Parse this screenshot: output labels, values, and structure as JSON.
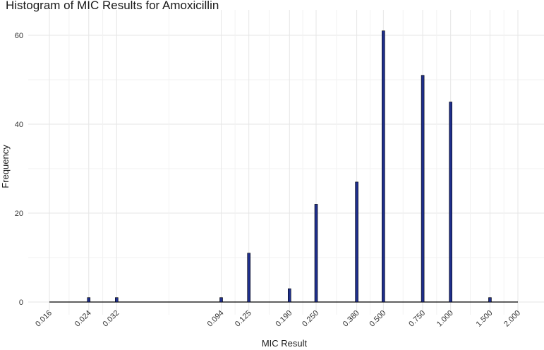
{
  "chart_data": {
    "type": "bar",
    "title": "Histogram of MIC Results for Amoxicillin",
    "xlabel": "MIC Result",
    "ylabel": "Frequency",
    "x_scale": "log",
    "x_ticks": [
      "0.016",
      "0.024",
      "0.032",
      "0.094",
      "0.125",
      "0.190",
      "0.250",
      "0.380",
      "0.500",
      "0.750",
      "1.000",
      "1.500",
      "2.000"
    ],
    "x_tick_values": [
      0.016,
      0.024,
      0.032,
      0.094,
      0.125,
      0.19,
      0.25,
      0.38,
      0.5,
      0.75,
      1.0,
      1.5,
      2.0
    ],
    "ylim": [
      0,
      62
    ],
    "y_ticks": [
      "0",
      "20",
      "40",
      "60"
    ],
    "y_tick_values": [
      0,
      20,
      40,
      60
    ],
    "bars": [
      {
        "x": 0.024,
        "y": 1
      },
      {
        "x": 0.032,
        "y": 1
      },
      {
        "x": 0.094,
        "y": 1
      },
      {
        "x": 0.125,
        "y": 11
      },
      {
        "x": 0.19,
        "y": 3
      },
      {
        "x": 0.25,
        "y": 22
      },
      {
        "x": 0.38,
        "y": 27
      },
      {
        "x": 0.5,
        "y": 61
      },
      {
        "x": 0.75,
        "y": 51
      },
      {
        "x": 1.0,
        "y": 45
      },
      {
        "x": 1.5,
        "y": 1
      }
    ],
    "bar_fill": "#1f2f8c",
    "bar_outline": "#000000",
    "grid": true,
    "legend": "none"
  }
}
